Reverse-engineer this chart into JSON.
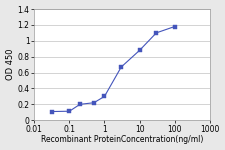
{
  "x": [
    0.031,
    0.1,
    0.2,
    0.5,
    1.0,
    3.0,
    10.0,
    30.0,
    100.0
  ],
  "y": [
    0.109,
    0.113,
    0.2,
    0.22,
    0.3,
    0.67,
    0.88,
    1.1,
    1.18
  ],
  "line_color": "#4455bb",
  "marker_color": "#4455bb",
  "marker": "s",
  "marker_size": 2.5,
  "linewidth": 0.8,
  "xlabel": "Recombinant ProteinConcentration(ng/ml)",
  "ylabel": "OD 450",
  "xlim": [
    0.01,
    1000
  ],
  "ylim": [
    0,
    1.4
  ],
  "yticks": [
    0,
    0.2,
    0.4,
    0.6,
    0.8,
    1.0,
    1.2,
    1.4
  ],
  "xticks": [
    0.01,
    0.1,
    1,
    10,
    100,
    1000
  ],
  "xtick_labels": [
    "0.01",
    "0.1",
    "1",
    "10",
    "100",
    "1000"
  ],
  "xlabel_fontsize": 5.5,
  "ylabel_fontsize": 6,
  "tick_fontsize": 5.5,
  "plot_bg_color": "#ffffff",
  "fig_bg_color": "#e8e8e8",
  "grid_color": "#cccccc",
  "grid_linewidth": 0.6
}
